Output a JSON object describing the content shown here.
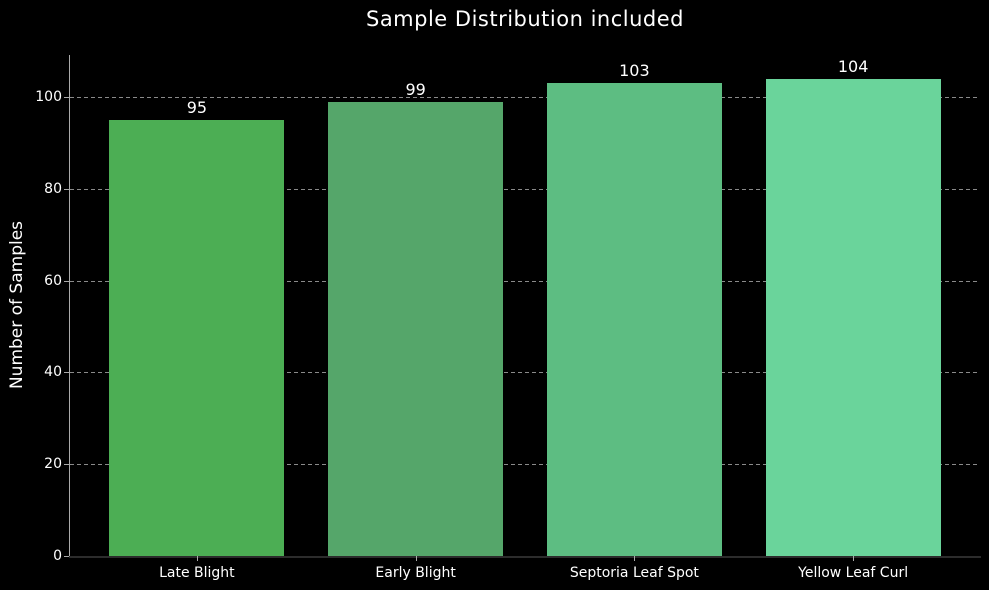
{
  "chart_data": {
    "type": "bar",
    "title": "Sample Distribution included",
    "xlabel": "",
    "ylabel": "Number of Samples",
    "categories": [
      "Late Blight",
      "Early Blight",
      "Septoria Leaf Spot",
      "Yellow Leaf Curl"
    ],
    "values": [
      95,
      99,
      103,
      104
    ],
    "bar_colors": [
      "#4cae54",
      "#55a66a",
      "#5dbd82",
      "#6ad49b"
    ],
    "yticks": [
      0,
      20,
      40,
      60,
      80,
      100
    ],
    "ylim": [
      0,
      109.2
    ],
    "grid": "horizontal dashed, behind bars",
    "legend": "none",
    "colors": {
      "background": "#000000",
      "text": "#ffffff",
      "gridline": "#8a8a8a",
      "axis_left": "#aaaaaa",
      "axis_bottom": "#2c2c2c"
    }
  }
}
